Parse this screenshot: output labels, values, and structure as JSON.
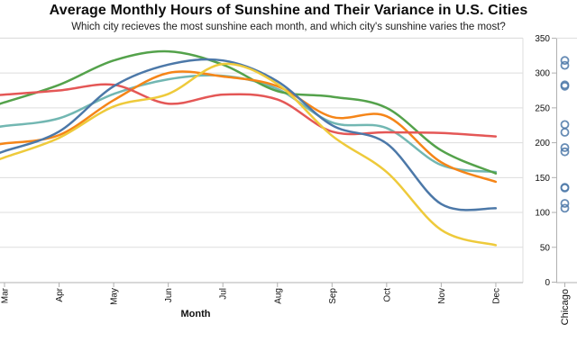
{
  "title": "Average Monthly Hours of Sunshine and Their Variance in U.S. Cities",
  "subtitle": "Which city recieves the most sunshine each month, and which city's sunshine varies the most?",
  "chart_data": [
    {
      "type": "line",
      "xlabel": "Month",
      "x_categories": [
        "Mar",
        "Apr",
        "May",
        "Jun",
        "Jul",
        "Aug",
        "Sep",
        "Oct",
        "Nov",
        "Dec"
      ],
      "ylim": [
        0,
        350
      ],
      "yticks": [
        50,
        100,
        150,
        200,
        250,
        300,
        350
      ],
      "grid": true,
      "legend": "none",
      "series": [
        {
          "name": "teal-line",
          "color": "#72b7b2",
          "values": [
            224,
            235,
            270,
            291,
            296,
            277,
            229,
            221,
            168,
            158
          ]
        },
        {
          "name": "green-line",
          "color": "#54a24b",
          "values": [
            258,
            283,
            318,
            331,
            312,
            274,
            266,
            250,
            189,
            156
          ]
        },
        {
          "name": "orange-line",
          "color": "#f58518",
          "values": [
            199,
            211,
            261,
            300,
            295,
            281,
            237,
            238,
            172,
            144
          ]
        },
        {
          "name": "red-line",
          "color": "#e45756",
          "values": [
            269,
            275,
            283,
            256,
            269,
            262,
            216,
            215,
            214,
            209
          ]
        },
        {
          "name": "blue-line",
          "color": "#4c78a8",
          "values": [
            188,
            216,
            281,
            312,
            318,
            288,
            225,
            199,
            112,
            106
          ]
        },
        {
          "name": "yellow-line",
          "color": "#eeca3b",
          "values": [
            179,
            207,
            252,
            270,
            313,
            284,
            210,
            158,
            75,
            53
          ]
        }
      ]
    },
    {
      "type": "scatter",
      "title": "Chicago",
      "ylim": [
        0,
        350
      ],
      "yticks": [
        0,
        50,
        100,
        150,
        200,
        250,
        300,
        350
      ],
      "point_color": "#4c78a8",
      "values": [
        318,
        311,
        283,
        281,
        226,
        215,
        193,
        187,
        136,
        135,
        113,
        106
      ]
    }
  ],
  "style": {
    "grid_color": "#dddddd",
    "axis_color": "#b0b0b0",
    "label_color": "#111111"
  }
}
